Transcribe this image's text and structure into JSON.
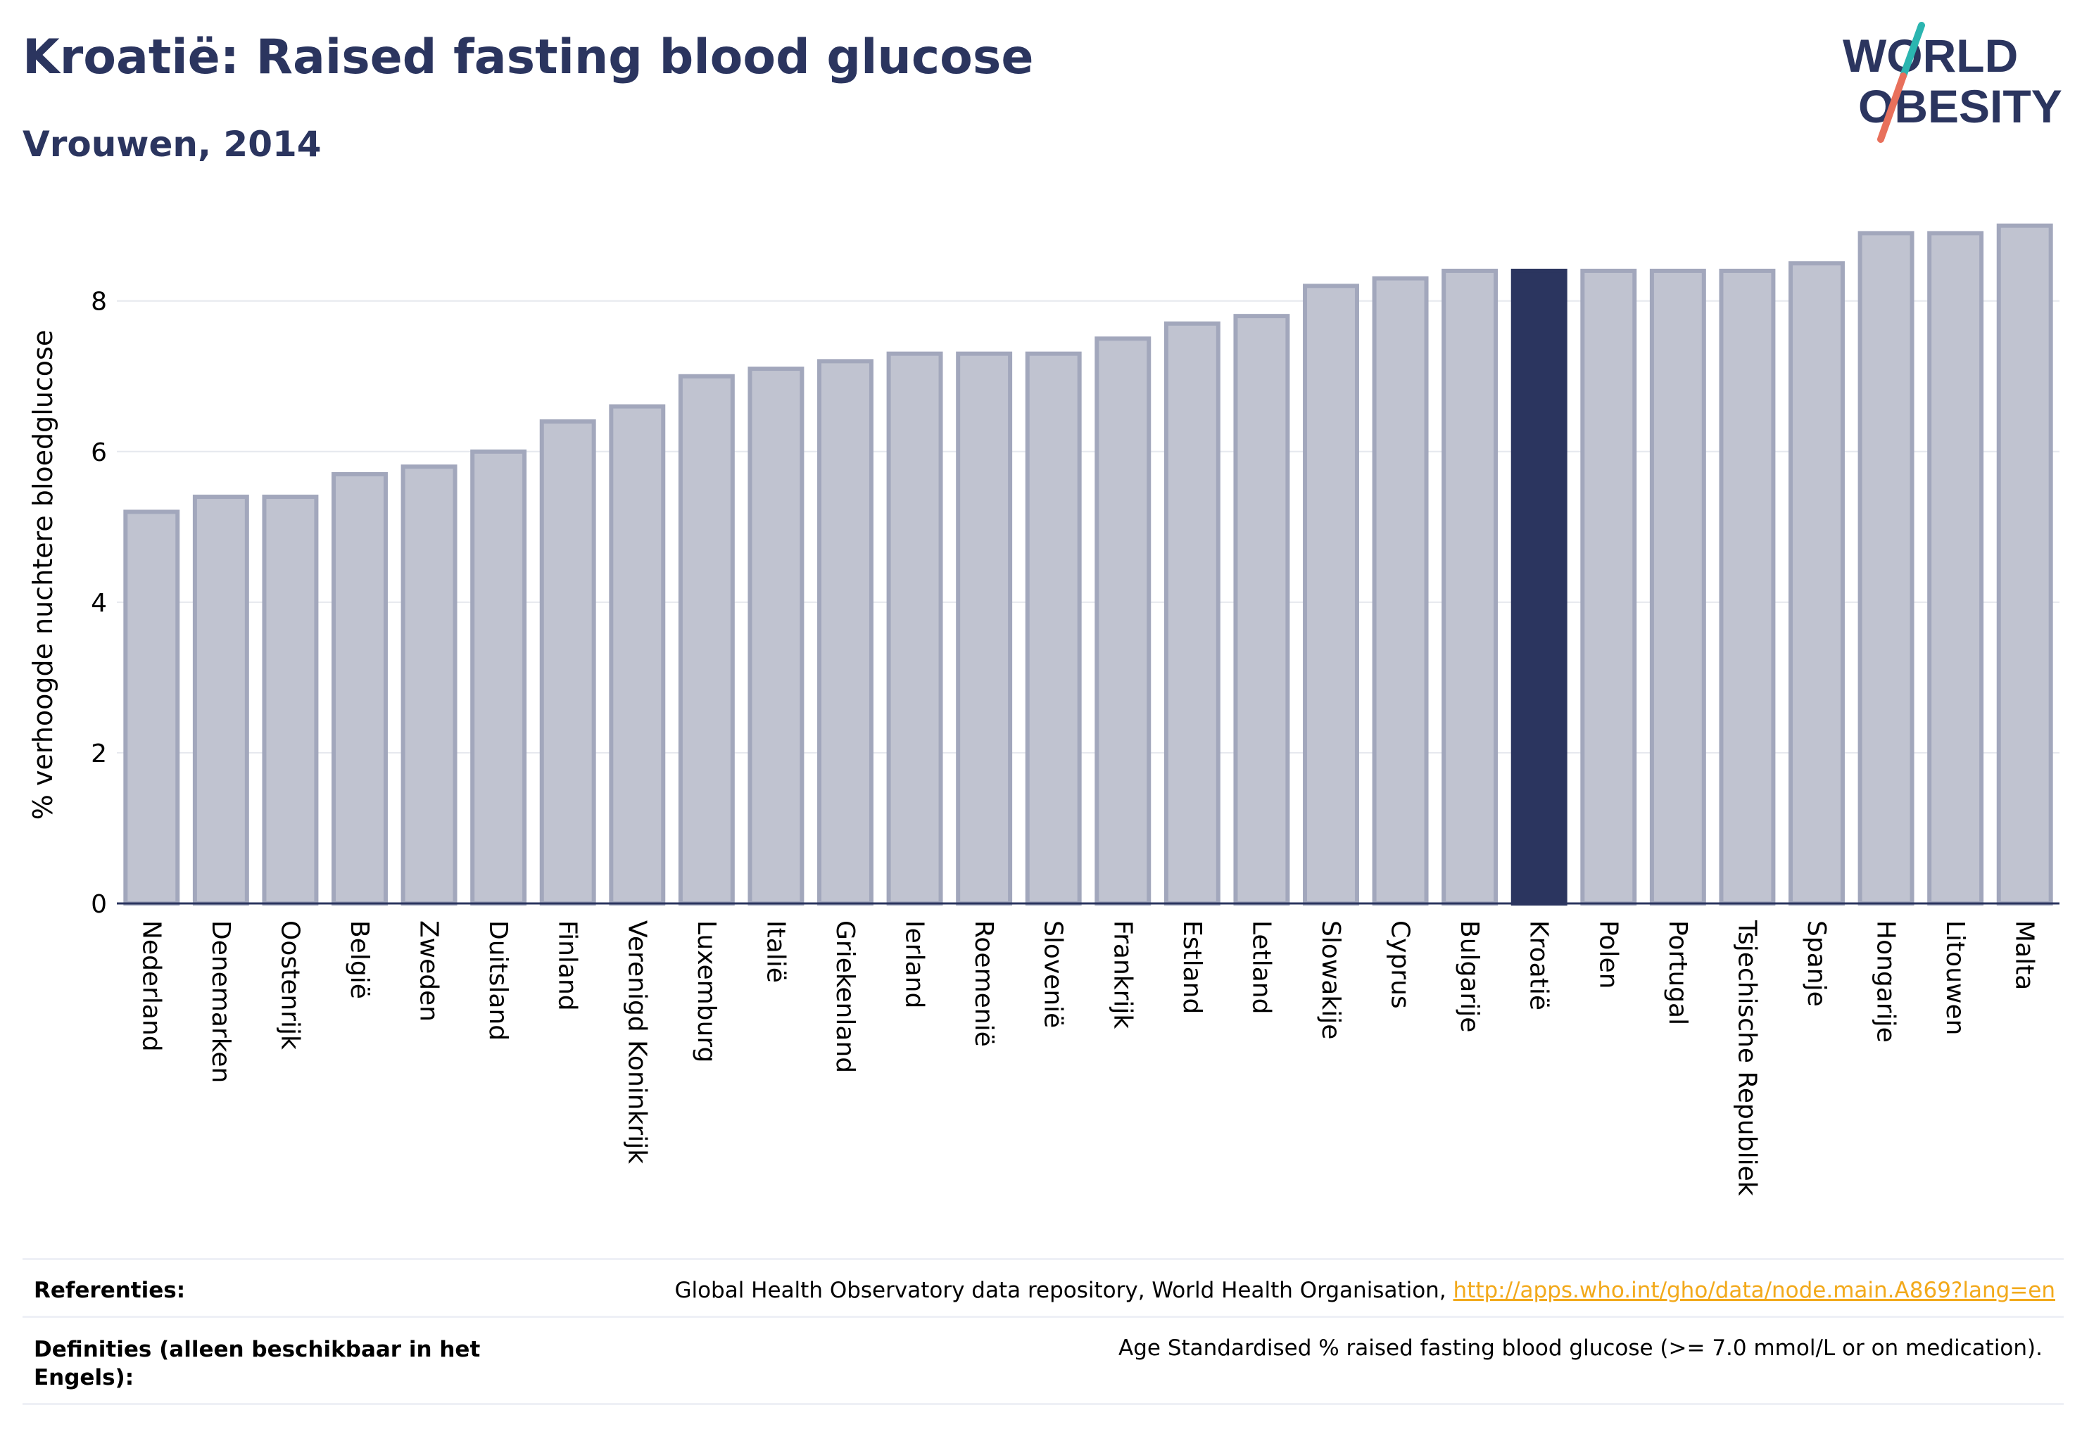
{
  "header": {
    "title": "Kroatië: Raised fasting blood glucose",
    "subtitle": "Vrouwen, 2014"
  },
  "logo": {
    "line1": "WORLD",
    "line2": "OBESITY",
    "colors": {
      "text": "#2b355f",
      "slash_top": "#2bb5b0",
      "slash_bottom": "#e8705b"
    }
  },
  "chart_data": {
    "type": "bar",
    "categories": [
      "Nederland",
      "Denemarken",
      "Oostenrijk",
      "België",
      "Zweden",
      "Duitsland",
      "Finland",
      "Verenigd Koninkrijk",
      "Luxemburg",
      "Italië",
      "Griekenland",
      "Ierland",
      "Roemenië",
      "Slovenië",
      "Frankrijk",
      "Estland",
      "Letland",
      "Slowakije",
      "Cyprus",
      "Bulgarije",
      "Kroatië",
      "Polen",
      "Portugal",
      "Tsjechische Republiek",
      "Spanje",
      "Hongarije",
      "Litouwen",
      "Malta"
    ],
    "values": [
      5.2,
      5.4,
      5.4,
      5.7,
      5.8,
      6.0,
      6.4,
      6.6,
      7.0,
      7.1,
      7.2,
      7.3,
      7.3,
      7.3,
      7.5,
      7.7,
      7.8,
      8.2,
      8.3,
      8.4,
      8.4,
      8.4,
      8.4,
      8.4,
      8.5,
      8.9,
      8.9,
      9.0
    ],
    "highlight": "Kroatië",
    "ylabel": "% verhoogde nuchtere bloedglucose",
    "yticks": [
      0,
      2,
      4,
      6,
      8
    ],
    "ylim": [
      0,
      9.1
    ],
    "grid": true,
    "colors": {
      "bar": "#c0c3d0",
      "bar_border": "#a2a7bc",
      "highlight": "#2b355f",
      "axis": "#2b355f",
      "grid": "#e6e8ee"
    }
  },
  "footer": {
    "references_label": "Referenties:",
    "references_text": "Global Health Observatory data repository, World Health Organisation,",
    "references_link": "http://apps.who.int/gho/data/node.main.A869?lang=en",
    "definitions_label": "Definities (alleen beschikbaar in het Engels):",
    "definitions_text": "Age Standardised % raised fasting blood glucose (>= 7.0 mmol/L or on medication)."
  }
}
